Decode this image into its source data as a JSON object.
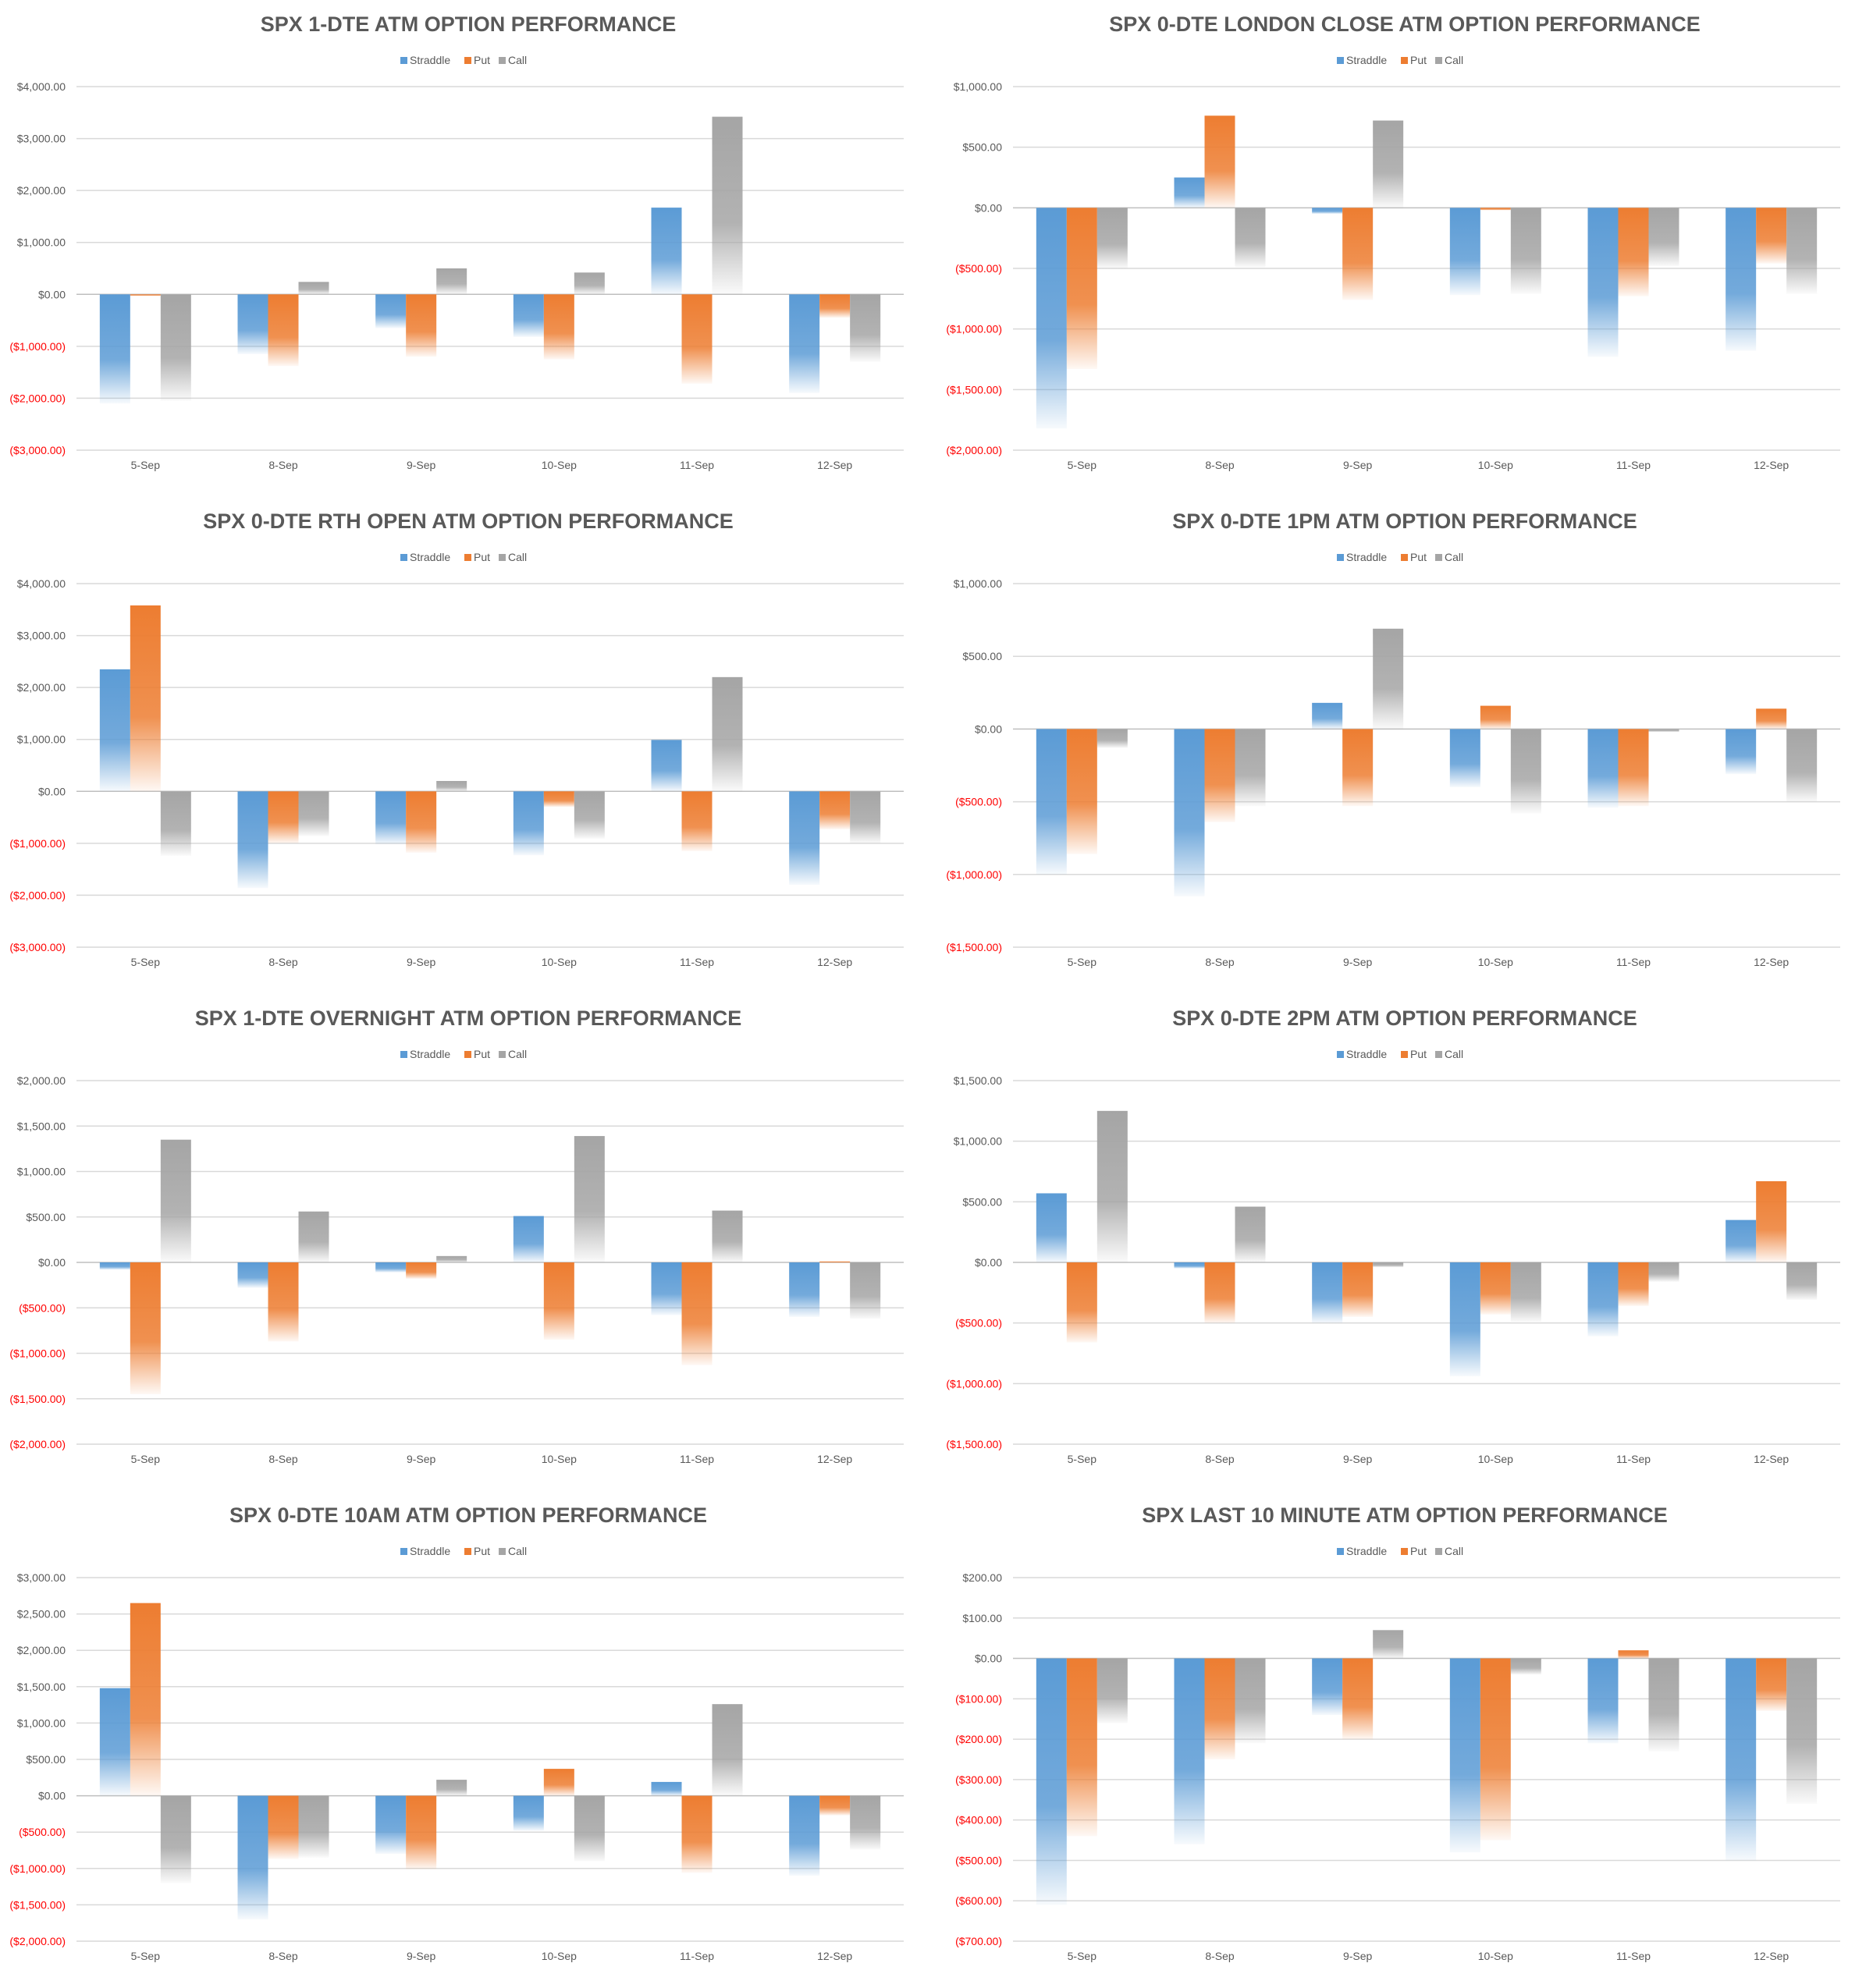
{
  "colors": {
    "straddle": "#5b9bd5",
    "put": "#ed7d31",
    "call": "#a5a5a5",
    "negative_label": "#ff0000",
    "title": "#595959",
    "axis_text": "#595959",
    "grid": "#d9d9d9"
  },
  "legend": [
    "Straddle",
    "Put",
    "Call"
  ],
  "chart_data": [
    {
      "type": "bar",
      "title": "SPX 1-DTE ATM OPTION PERFORMANCE",
      "categories": [
        "5-Sep",
        "8-Sep",
        "9-Sep",
        "10-Sep",
        "11-Sep",
        "12-Sep"
      ],
      "ylim": [
        -3000,
        4000
      ],
      "yticks": [
        4000,
        3000,
        2000,
        1000,
        0,
        -1000,
        -2000,
        -3000
      ],
      "ytick_labels": [
        "$4,000.00",
        "$3,000.00",
        "$2,000.00",
        "$1,000.00",
        "$0.00",
        "($1,000.00)",
        "($2,000.00)",
        "($3,000.00)"
      ],
      "series": [
        {
          "name": "Straddle",
          "values": [
            -2100,
            -1150,
            -650,
            -820,
            1670,
            -1900
          ]
        },
        {
          "name": "Put",
          "values": [
            -30,
            -1380,
            -1200,
            -1250,
            -1720,
            -450
          ]
        },
        {
          "name": "Call",
          "values": [
            -2050,
            240,
            500,
            420,
            3420,
            -1300
          ]
        }
      ]
    },
    {
      "type": "bar",
      "title": "SPX 0-DTE  LONDON CLOSE ATM OPTION PERFORMANCE",
      "categories": [
        "5-Sep",
        "8-Sep",
        "9-Sep",
        "10-Sep",
        "11-Sep",
        "12-Sep"
      ],
      "ylim": [
        -2000,
        1000
      ],
      "yticks": [
        1000,
        500,
        0,
        -500,
        -1000,
        -1500,
        -2000
      ],
      "ytick_labels": [
        "$1,000.00",
        "$500.00",
        "$0.00",
        "($500.00)",
        "($1,000.00)",
        "($1,500.00)",
        "($2,000.00)"
      ],
      "series": [
        {
          "name": "Straddle",
          "values": [
            -1820,
            250,
            -50,
            -720,
            -1230,
            -1180
          ]
        },
        {
          "name": "Put",
          "values": [
            -1330,
            760,
            -760,
            -20,
            -730,
            -460
          ]
        },
        {
          "name": "Call",
          "values": [
            -500,
            -490,
            720,
            -710,
            -480,
            -710
          ]
        }
      ]
    },
    {
      "type": "bar",
      "title": "SPX 0-DTE RTH OPEN ATM OPTION PERFORMANCE",
      "categories": [
        "5-Sep",
        "8-Sep",
        "9-Sep",
        "10-Sep",
        "11-Sep",
        "12-Sep"
      ],
      "ylim": [
        -3000,
        4000
      ],
      "yticks": [
        4000,
        3000,
        2000,
        1000,
        0,
        -1000,
        -2000,
        -3000
      ],
      "ytick_labels": [
        "$4,000.00",
        "$3,000.00",
        "$2,000.00",
        "$1,000.00",
        "$0.00",
        "($1,000.00)",
        "($2,000.00)",
        "($3,000.00)"
      ],
      "series": [
        {
          "name": "Straddle",
          "values": [
            2350,
            -1860,
            -1020,
            -1230,
            990,
            -1800
          ]
        },
        {
          "name": "Put",
          "values": [
            3580,
            -1000,
            -1180,
            -300,
            -1150,
            -730
          ]
        },
        {
          "name": "Call",
          "values": [
            -1240,
            -860,
            200,
            -910,
            2200,
            -1000
          ]
        }
      ]
    },
    {
      "type": "bar",
      "title": "SPX 0-DTE 1PM ATM OPTION PERFORMANCE",
      "categories": [
        "5-Sep",
        "8-Sep",
        "9-Sep",
        "10-Sep",
        "11-Sep",
        "12-Sep"
      ],
      "ylim": [
        -1500,
        1000
      ],
      "yticks": [
        1000,
        500,
        0,
        -500,
        -1000,
        -1500
      ],
      "ytick_labels": [
        "$1,000.00",
        "$500.00",
        "$0.00",
        "($500.00)",
        "($1,000.00)",
        "($1,500.00)"
      ],
      "series": [
        {
          "name": "Straddle",
          "values": [
            -1000,
            -1150,
            180,
            -400,
            -540,
            -310
          ]
        },
        {
          "name": "Put",
          "values": [
            -860,
            -640,
            -530,
            160,
            -530,
            140
          ]
        },
        {
          "name": "Call",
          "values": [
            -130,
            -530,
            690,
            -580,
            -20,
            -500
          ]
        }
      ]
    },
    {
      "type": "bar",
      "title": "SPX 1-DTE OVERNIGHT ATM OPTION PERFORMANCE",
      "categories": [
        "5-Sep",
        "8-Sep",
        "9-Sep",
        "10-Sep",
        "11-Sep",
        "12-Sep"
      ],
      "ylim": [
        -2000,
        2000
      ],
      "yticks": [
        2000,
        1500,
        1000,
        500,
        0,
        -500,
        -1000,
        -1500,
        -2000
      ],
      "ytick_labels": [
        "$2,000.00",
        "$1,500.00",
        "$1,000.00",
        "$500.00",
        "$0.00",
        "($500.00)",
        "($1,000.00)",
        "($1,500.00)",
        "($2,000.00)"
      ],
      "series": [
        {
          "name": "Straddle",
          "values": [
            -80,
            -280,
            -110,
            510,
            -580,
            -600
          ]
        },
        {
          "name": "Put",
          "values": [
            -1450,
            -870,
            -180,
            -850,
            -1130,
            10
          ]
        },
        {
          "name": "Call",
          "values": [
            1350,
            560,
            70,
            1390,
            570,
            -620
          ]
        }
      ]
    },
    {
      "type": "bar",
      "title": "SPX 0-DTE 2PM ATM OPTION PERFORMANCE",
      "categories": [
        "5-Sep",
        "8-Sep",
        "9-Sep",
        "10-Sep",
        "11-Sep",
        "12-Sep"
      ],
      "ylim": [
        -1500,
        1500
      ],
      "yticks": [
        1500,
        1000,
        500,
        0,
        -500,
        -1000,
        -1500
      ],
      "ytick_labels": [
        "$1,500.00",
        "$1,000.00",
        "$500.00",
        "$0.00",
        "($500.00)",
        "($1,000.00)",
        "($1,500.00)"
      ],
      "series": [
        {
          "name": "Straddle",
          "values": [
            570,
            -50,
            -500,
            -940,
            -610,
            350
          ]
        },
        {
          "name": "Put",
          "values": [
            -660,
            -500,
            -450,
            -430,
            -360,
            670
          ]
        },
        {
          "name": "Call",
          "values": [
            1250,
            460,
            -40,
            -490,
            -160,
            -310
          ]
        }
      ]
    },
    {
      "type": "bar",
      "title": "SPX 0-DTE 10AM ATM OPTION PERFORMANCE",
      "categories": [
        "5-Sep",
        "8-Sep",
        "9-Sep",
        "10-Sep",
        "11-Sep",
        "12-Sep"
      ],
      "ylim": [
        -2000,
        3000
      ],
      "yticks": [
        3000,
        2500,
        2000,
        1500,
        1000,
        500,
        0,
        -500,
        -1000,
        -1500,
        -2000
      ],
      "ytick_labels": [
        "$3,000.00",
        "$2,500.00",
        "$2,000.00",
        "$1,500.00",
        "$1,000.00",
        "$500.00",
        "$0.00",
        "($500.00)",
        "($1,000.00)",
        "($1,500.00)",
        "($2,000.00)"
      ],
      "series": [
        {
          "name": "Straddle",
          "values": [
            1480,
            -1700,
            -800,
            -480,
            190,
            -1100
          ]
        },
        {
          "name": "Put",
          "values": [
            2650,
            -870,
            -1010,
            370,
            -1060,
            -270
          ]
        },
        {
          "name": "Call",
          "values": [
            -1200,
            -850,
            220,
            -900,
            1260,
            -740
          ]
        }
      ]
    },
    {
      "type": "bar",
      "title": "SPX LAST 10 MINUTE ATM OPTION PERFORMANCE",
      "categories": [
        "5-Sep",
        "8-Sep",
        "9-Sep",
        "10-Sep",
        "11-Sep",
        "12-Sep"
      ],
      "ylim": [
        -700,
        200
      ],
      "yticks": [
        200,
        100,
        0,
        -100,
        -200,
        -300,
        -400,
        -500,
        -600,
        -700
      ],
      "ytick_labels": [
        "$200.00",
        "$100.00",
        "$0.00",
        "($100.00)",
        "($200.00)",
        "($300.00)",
        "($400.00)",
        "($500.00)",
        "($600.00)",
        "($700.00)"
      ],
      "series": [
        {
          "name": "Straddle",
          "values": [
            -610,
            -460,
            -140,
            -480,
            -210,
            -500
          ]
        },
        {
          "name": "Put",
          "values": [
            -440,
            -250,
            -200,
            -450,
            20,
            -130
          ]
        },
        {
          "name": "Call",
          "values": [
            -160,
            -210,
            70,
            -40,
            -230,
            -360
          ]
        }
      ]
    }
  ]
}
